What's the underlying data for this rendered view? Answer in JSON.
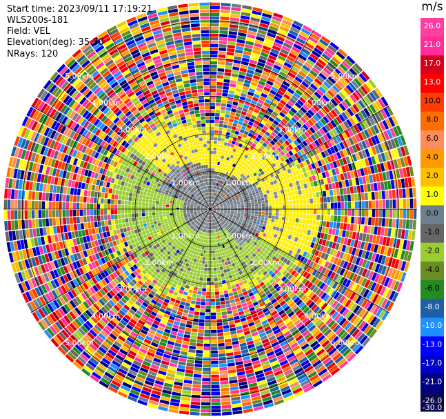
{
  "header": {
    "start_time": "Start time: 2023/09/11 17:19:21",
    "instrument": "WLS200s-181",
    "field": "Field: VEL",
    "elevation": "Elevation(deg): 35.30",
    "nrays": "NRays: 120"
  },
  "chart_data": {
    "type": "heatmap",
    "subtype": "polar-ppi",
    "nrays": 120,
    "range_ring_labels": [
      "1.00km",
      "2.00km",
      "3.00km",
      "4.00km",
      "5.00km"
    ],
    "max_range_km": 5.5,
    "colorbar": {
      "unit": "m/s",
      "ticks": [
        "26.0",
        "21.0",
        "17.0",
        "13.0",
        "10.0",
        "8.0",
        "6.0",
        "4.0",
        "2.0",
        "1.0",
        "0.0",
        "-1.0",
        "-2.0",
        "-4.0",
        "-6.0",
        "-8.0",
        "-10.0",
        "-13.0",
        "-17.0",
        "-21.0",
        "-26.0",
        "-30.0"
      ],
      "colors": [
        "#ff3fa0",
        "#ff2d9a",
        "#d80018",
        "#ff0000",
        "#ff3b00",
        "#ff6e00",
        "#ff8c5a",
        "#ff9a00",
        "#ffc000",
        "#ffff00",
        "#6e7f8f",
        "#666666",
        "#9acd32",
        "#6b8e23",
        "#228b22",
        "#1e5fa8",
        "#1e90ff",
        "#0000ff",
        "#0000c8",
        "#000080",
        "#0a0a50",
        "#0a0a50"
      ]
    },
    "inner_velocity_zones": [
      {
        "label": "0.0",
        "color": "#7a8a99"
      },
      {
        "label": "-1.0",
        "color": "#6a6a6a"
      },
      {
        "label": "-2.0",
        "color": "#9acd32"
      },
      {
        "label": "2.0",
        "color": "#ffee00"
      }
    ]
  }
}
